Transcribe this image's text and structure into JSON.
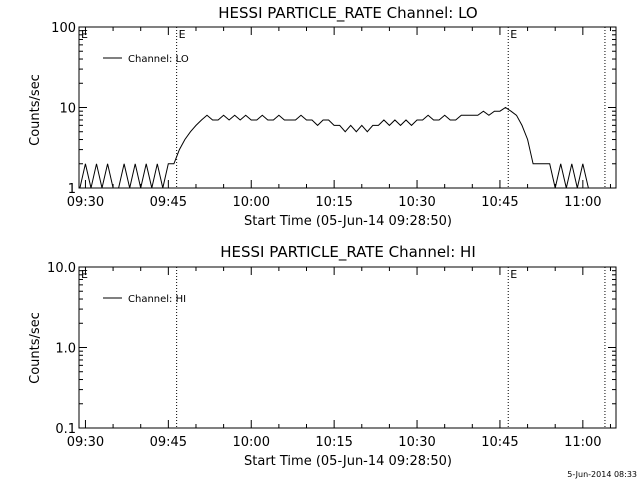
{
  "chart_data": [
    {
      "type": "line",
      "title": "HESSI PARTICLE_RATE Channel: LO",
      "xlabel": "Start Time (05-Jun-14 09:28:50)",
      "ylabel": "Counts/sec",
      "y_scale": "log",
      "xlim": [
        "09:28:50",
        "11:06:00"
      ],
      "ylim": [
        1,
        100
      ],
      "x_ticks": [
        "09:30",
        "09:45",
        "10:00",
        "10:15",
        "10:30",
        "10:45",
        "11:00"
      ],
      "y_ticks": [
        "1",
        "10",
        "100"
      ],
      "grid": false,
      "legend_position": "top-left",
      "event_markers": [
        {
          "time": "09:46:30",
          "label": "E"
        },
        {
          "time": "10:46:30",
          "label": "E"
        },
        {
          "time": "11:04:00",
          "label": ""
        },
        {
          "time": "09:28:50",
          "label": "E"
        }
      ],
      "series": [
        {
          "name": "Channel: LO",
          "x": [
            "09:29",
            "09:30",
            "09:31",
            "09:32",
            "09:33",
            "09:34",
            "09:35",
            "09:36",
            "09:37",
            "09:38",
            "09:39",
            "09:40",
            "09:41",
            "09:42",
            "09:43",
            "09:44",
            "09:45",
            "09:46",
            "09:47",
            "09:48",
            "09:49",
            "09:50",
            "09:51",
            "09:52",
            "09:53",
            "09:54",
            "09:55",
            "09:56",
            "09:57",
            "09:58",
            "09:59",
            "10:00",
            "10:01",
            "10:02",
            "10:03",
            "10:04",
            "10:05",
            "10:06",
            "10:07",
            "10:08",
            "10:09",
            "10:10",
            "10:11",
            "10:12",
            "10:13",
            "10:14",
            "10:15",
            "10:16",
            "10:17",
            "10:18",
            "10:19",
            "10:20",
            "10:21",
            "10:22",
            "10:23",
            "10:24",
            "10:25",
            "10:26",
            "10:27",
            "10:28",
            "10:29",
            "10:30",
            "10:31",
            "10:32",
            "10:33",
            "10:34",
            "10:35",
            "10:36",
            "10:37",
            "10:38",
            "10:39",
            "10:40",
            "10:41",
            "10:42",
            "10:43",
            "10:44",
            "10:45",
            "10:46",
            "10:47",
            "10:48",
            "10:49",
            "10:50",
            "10:51",
            "10:52",
            "10:53",
            "10:54",
            "10:55",
            "10:56",
            "10:57",
            "10:58",
            "10:59",
            "11:00",
            "11:01",
            "11:02",
            "11:03"
          ],
          "values": [
            1,
            2,
            1,
            2,
            1,
            2,
            1,
            1,
            2,
            1,
            2,
            1,
            2,
            1,
            2,
            1,
            2,
            2,
            3,
            4,
            5,
            6,
            7,
            8,
            7,
            7,
            8,
            7,
            8,
            7,
            8,
            7,
            7,
            8,
            7,
            7,
            8,
            7,
            7,
            7,
            8,
            7,
            7,
            6,
            7,
            7,
            6,
            6,
            5,
            6,
            5,
            6,
            5,
            6,
            6,
            7,
            6,
            7,
            6,
            7,
            6,
            7,
            7,
            8,
            7,
            7,
            8,
            7,
            7,
            8,
            8,
            8,
            8,
            9,
            8,
            9,
            9,
            10,
            9,
            8,
            6,
            4,
            2,
            2,
            2,
            2,
            1,
            2,
            1,
            2,
            1,
            2,
            1,
            1,
            1
          ]
        }
      ]
    },
    {
      "type": "line",
      "title": "HESSI PARTICLE_RATE Channel: HI",
      "xlabel": "Start Time (05-Jun-14 09:28:50)",
      "ylabel": "Counts/sec",
      "y_scale": "log",
      "xlim": [
        "09:28:50",
        "11:06:00"
      ],
      "ylim": [
        0.1,
        10
      ],
      "x_ticks": [
        "09:30",
        "09:45",
        "10:00",
        "10:15",
        "10:30",
        "10:45",
        "11:00"
      ],
      "y_ticks": [
        "0.1",
        "1.0",
        "10.0"
      ],
      "grid": false,
      "legend_position": "top-left",
      "event_markers": [
        {
          "time": "09:46:30",
          "label": ""
        },
        {
          "time": "10:46:30",
          "label": "E"
        },
        {
          "time": "11:04:00",
          "label": ""
        },
        {
          "time": "09:28:50",
          "label": "E"
        }
      ],
      "series": [
        {
          "name": "Channel: HI",
          "x": [],
          "values": []
        }
      ]
    }
  ],
  "footer": {
    "timestamp": "5-Jun-2014 08:33"
  },
  "colors": {
    "background": "#ffffff",
    "foreground": "#000000"
  }
}
